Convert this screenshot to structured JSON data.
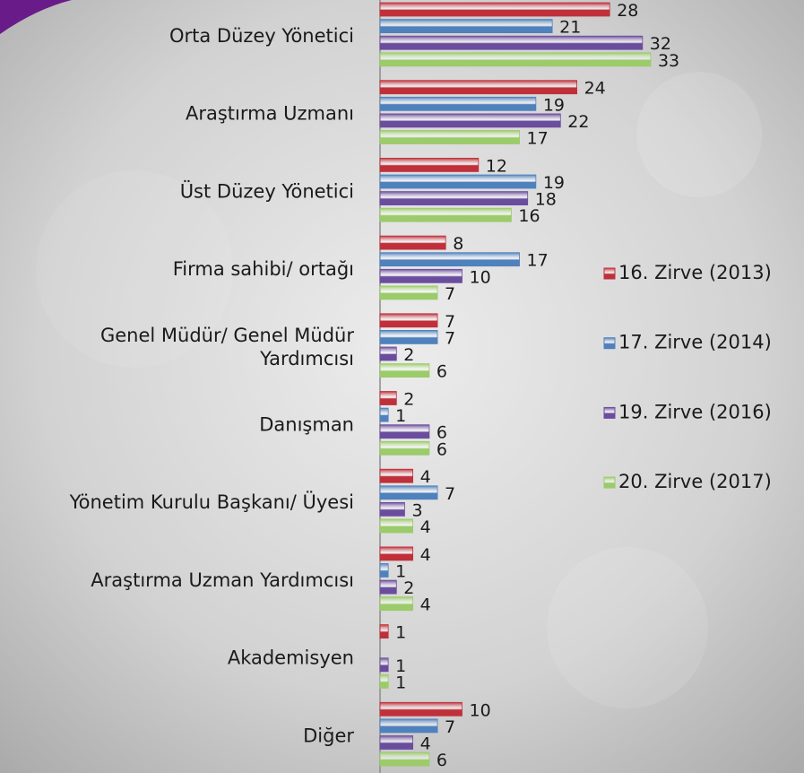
{
  "chart_data": {
    "type": "bar",
    "orientation": "horizontal",
    "categories": [
      "Orta Düzey Yönetici",
      "Araştırma Uzmanı",
      "Üst Düzey Yönetici",
      "Firma sahibi/ ortağı",
      "Genel Müdür/ Genel Müdür Yardımcısı",
      "Danışman",
      "Yönetim Kurulu Başkanı/ Üyesi",
      "Araştırma Uzman Yardımcısı",
      "Akademisyen",
      "Diğer"
    ],
    "series": [
      {
        "name": "16. Zirve (2013)",
        "color": "#c0303a",
        "values": [
          28,
          24,
          12,
          8,
          7,
          2,
          4,
          4,
          1,
          10
        ]
      },
      {
        "name": "17. Zirve (2014)",
        "color": "#4f81bd",
        "values": [
          21,
          19,
          19,
          17,
          7,
          1,
          7,
          1,
          null,
          7
        ]
      },
      {
        "name": "19. Zirve (2016)",
        "color": "#6b4d9e",
        "values": [
          32,
          22,
          18,
          10,
          2,
          6,
          3,
          2,
          1,
          4
        ]
      },
      {
        "name": "20. Zirve (2017)",
        "color": "#9bcb6a",
        "values": [
          33,
          17,
          16,
          7,
          6,
          6,
          4,
          4,
          1,
          6
        ]
      }
    ],
    "legend": "right"
  }
}
